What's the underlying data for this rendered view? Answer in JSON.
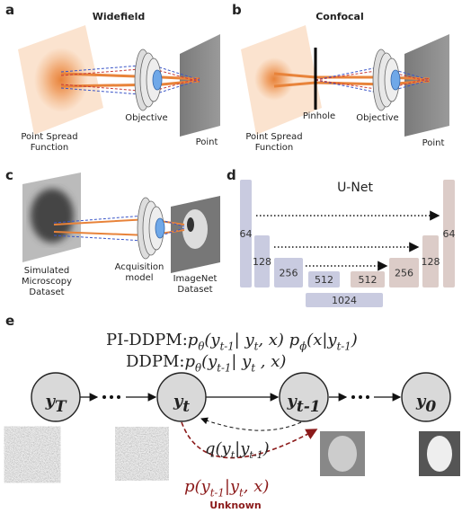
{
  "panels": {
    "a": {
      "label": "a",
      "title": "Widefield",
      "psf_label": [
        "Point Spread",
        "Function"
      ],
      "objective": "Objective",
      "point": "Point"
    },
    "b": {
      "label": "b",
      "title": "Confocal",
      "psf_label": [
        "Point Spread",
        "Function"
      ],
      "pinhole": "Pinhole",
      "objective": "Objective",
      "point": "Point"
    },
    "c": {
      "label": "c",
      "source": [
        "Simulated",
        "Microscopy",
        "Dataset"
      ],
      "model": [
        "Acquisition",
        "model"
      ],
      "target": [
        "ImageNet",
        "Dataset"
      ]
    },
    "d": {
      "label": "d",
      "title": "U-Net",
      "encoder": [
        64,
        128,
        256,
        512
      ],
      "decoder": [
        512,
        256,
        128,
        64
      ],
      "bottleneck": 1024
    },
    "e": {
      "label": "e",
      "pi_ddpm": {
        "label": "PI-DDPM:",
        "formula": [
          "p",
          "θ",
          "(y",
          "t-1",
          "| y",
          "t",
          ", x) p",
          "ϕ",
          "(x|y",
          "t-1",
          ")"
        ]
      },
      "ddpm": {
        "label": "DDPM:",
        "formula": [
          "p",
          "θ",
          "(y",
          "t-1",
          "| y",
          "t",
          " , x)"
        ]
      },
      "nodes": [
        {
          "symbol": "y",
          "index": "T"
        },
        {
          "symbol": "y",
          "index": "t"
        },
        {
          "symbol": "y",
          "index": "t-1"
        },
        {
          "symbol": "y",
          "index": "0"
        }
      ],
      "forward": [
        "q(y",
        "t",
        "|y",
        "t-1",
        ")"
      ],
      "reverse": [
        "p(y",
        "t-1",
        "|y",
        "t",
        ", x)"
      ],
      "reverse_note": "Unknown"
    }
  }
}
